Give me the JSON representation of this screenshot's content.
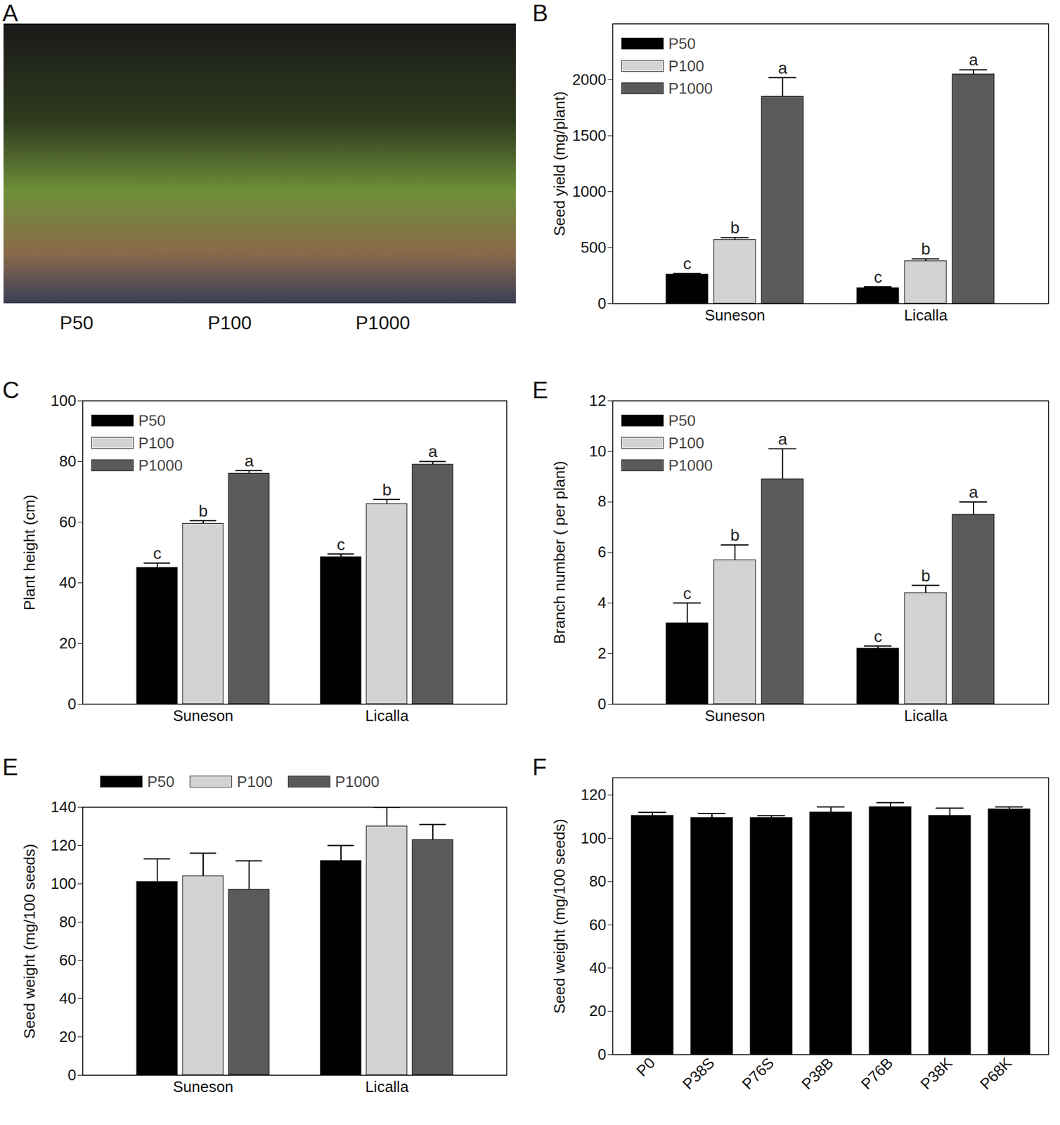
{
  "chart_data": [
    {
      "type": "image",
      "title": "A",
      "categories": [
        "P50",
        "P100",
        "P1000"
      ]
    },
    {
      "type": "bar",
      "title": "B",
      "y_label": "Seed yield (mg/plant)",
      "categories": [
        "Suneson",
        "Licalla"
      ],
      "series": [
        {
          "name": "P50",
          "color": "#000000",
          "values": [
            260,
            140
          ],
          "errors": [
            10,
            10
          ],
          "annotations": [
            "c",
            "c"
          ]
        },
        {
          "name": "P100",
          "color": "#d3d3d3",
          "values": [
            570,
            380
          ],
          "errors": [
            20,
            20
          ],
          "annotations": [
            "b",
            "b"
          ]
        },
        {
          "name": "P1000",
          "color": "#5a5a5a",
          "values": [
            1850,
            2050
          ],
          "errors": [
            170,
            40
          ],
          "annotations": [
            "a",
            "a"
          ]
        }
      ],
      "ylim": [
        0,
        2500
      ],
      "yticks": [
        0,
        500,
        1000,
        1500,
        2000
      ],
      "legend": "upper left"
    },
    {
      "type": "bar",
      "title": "C",
      "y_label": "Plant height (cm)",
      "categories": [
        "Suneson",
        "Licalla"
      ],
      "series": [
        {
          "name": "P50",
          "color": "#000000",
          "values": [
            45,
            48.5
          ],
          "errors": [
            1.5,
            1
          ],
          "annotations": [
            "c",
            "c"
          ]
        },
        {
          "name": "P100",
          "color": "#d3d3d3",
          "values": [
            59.5,
            66
          ],
          "errors": [
            1,
            1.5
          ],
          "annotations": [
            "b",
            "b"
          ]
        },
        {
          "name": "P1000",
          "color": "#5a5a5a",
          "values": [
            76,
            79
          ],
          "errors": [
            1,
            1
          ],
          "annotations": [
            "a",
            "a"
          ]
        }
      ],
      "ylim": [
        0,
        100
      ],
      "yticks": [
        0,
        20,
        40,
        60,
        80,
        100
      ],
      "legend": "upper left"
    },
    {
      "type": "bar",
      "title": "E",
      "y_label": "Branch number ( per plant)",
      "categories": [
        "Suneson",
        "Licalla"
      ],
      "series": [
        {
          "name": "P50",
          "color": "#000000",
          "values": [
            3.2,
            2.2
          ],
          "errors": [
            0.8,
            0.1
          ],
          "annotations": [
            "c",
            "c"
          ]
        },
        {
          "name": "P100",
          "color": "#d3d3d3",
          "values": [
            5.7,
            4.4
          ],
          "errors": [
            0.6,
            0.3
          ],
          "annotations": [
            "b",
            "b"
          ]
        },
        {
          "name": "P1000",
          "color": "#5a5a5a",
          "values": [
            8.9,
            7.5
          ],
          "errors": [
            1.2,
            0.5
          ],
          "annotations": [
            "a",
            "a"
          ]
        }
      ],
      "ylim": [
        0,
        12
      ],
      "yticks": [
        0,
        2,
        4,
        6,
        8,
        10,
        12
      ],
      "legend": "upper left"
    },
    {
      "type": "bar",
      "title": "E",
      "y_label": "Seed weight (mg/100 seeds)",
      "categories": [
        "Suneson",
        "Licalla"
      ],
      "series": [
        {
          "name": "P50",
          "color": "#000000",
          "values": [
            101,
            112
          ],
          "errors": [
            12,
            8
          ]
        },
        {
          "name": "P100",
          "color": "#d3d3d3",
          "values": [
            104,
            130
          ],
          "errors": [
            12,
            10
          ]
        },
        {
          "name": "P1000",
          "color": "#5a5a5a",
          "values": [
            97,
            123
          ],
          "errors": [
            15,
            8
          ]
        }
      ],
      "ylim": [
        0,
        140
      ],
      "yticks": [
        0,
        20,
        40,
        60,
        80,
        100,
        120,
        140
      ],
      "legend": "top"
    },
    {
      "type": "bar",
      "title": "F",
      "y_label": "Seed weight (mg/100 seeds)",
      "categories": [
        "P0",
        "P38S",
        "P76S",
        "P38B",
        "P76B",
        "P38K",
        "P68K"
      ],
      "series": [
        {
          "name": "Seed weight",
          "color": "#000000",
          "values": [
            110.5,
            109.5,
            109.5,
            112,
            114.5,
            110.5,
            113.5
          ],
          "errors": [
            1.5,
            2,
            1,
            2.5,
            2,
            3.5,
            1
          ]
        }
      ],
      "ylim": [
        0,
        128
      ],
      "yticks": [
        0,
        20,
        40,
        60,
        80,
        100,
        120
      ]
    }
  ]
}
